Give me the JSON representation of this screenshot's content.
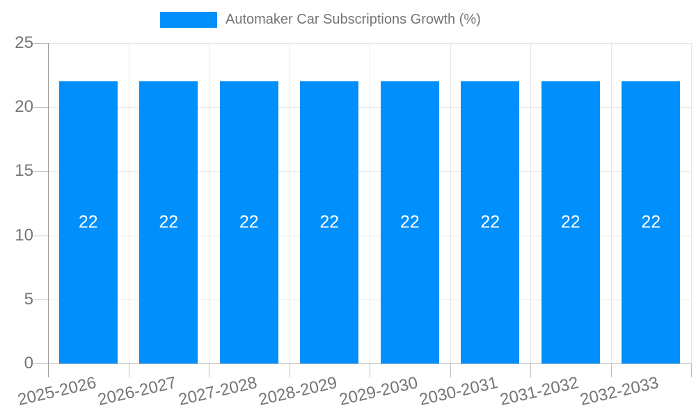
{
  "chart_data": {
    "type": "bar",
    "title": "Automaker Car Subscriptions Growth (%)",
    "categories": [
      "2025-2026",
      "2026-2027",
      "2027-2028",
      "2028-2029",
      "2029-2030",
      "2030-2031",
      "2031-2032",
      "2032-2033"
    ],
    "series": [
      {
        "name": "Automaker Car Subscriptions Growth (%)",
        "values": [
          22,
          22,
          22,
          22,
          22,
          22,
          22,
          22
        ]
      }
    ],
    "bar_value_labels": [
      "22",
      "22",
      "22",
      "22",
      "22",
      "22",
      "22",
      "22"
    ],
    "xlabel": "",
    "ylabel": "",
    "ylim": [
      0,
      25
    ],
    "yticks": [
      0,
      5,
      10,
      15,
      20,
      25
    ],
    "ytick_labels": [
      "0",
      "5",
      "10",
      "15",
      "20",
      "25"
    ],
    "grid": true,
    "legend_position": "top",
    "colors": {
      "bar": "#008FFB",
      "bar_label_text": "#ffffff",
      "axis_text": "#757575",
      "legend_text": "#757575",
      "gridline": "#e6e6e6",
      "y_axis_line": "#9a9a9a",
      "x_axis_line": "#b3b3b3",
      "tick": "#bdbdbd",
      "background": "#ffffff"
    }
  }
}
